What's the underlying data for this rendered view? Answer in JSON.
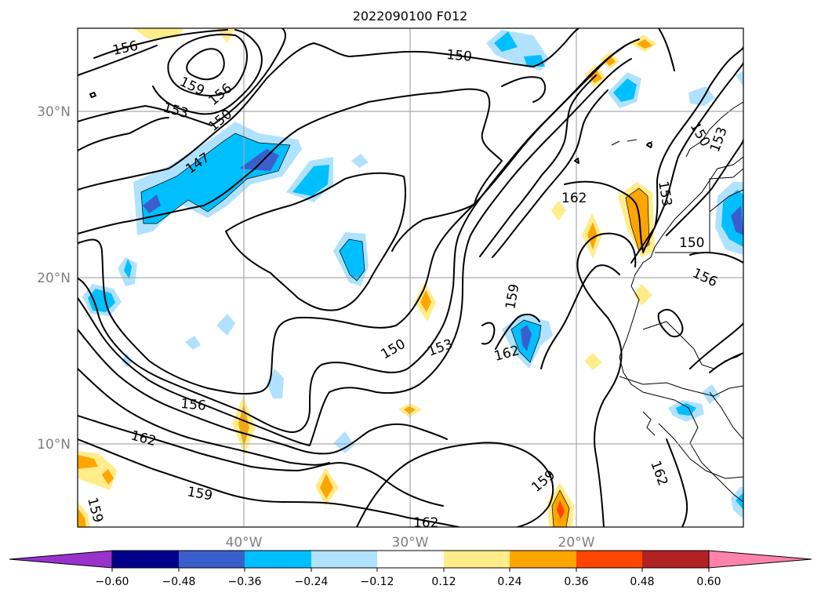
{
  "title": "2022090100 F012",
  "map": {
    "lat_labels": [
      "30°N",
      "20°N",
      "10°N"
    ],
    "lon_labels": [
      "40°W",
      "30°W",
      "20°W"
    ],
    "contour_labels": [
      "156",
      "159",
      "156",
      "153",
      "150",
      "147",
      "150",
      "150",
      "153",
      "162",
      "159",
      "162",
      "150",
      "153",
      "153",
      "150",
      "156",
      "156",
      "162",
      "159",
      "159",
      "162",
      "162",
      "159"
    ]
  },
  "colorbar": {
    "ticks": [
      "−0.60",
      "−0.48",
      "−0.36",
      "−0.24",
      "−0.12",
      "0.12",
      "0.24",
      "0.36",
      "0.48",
      "0.60"
    ],
    "colors": [
      "#9932cc",
      "#00008b",
      "#3a5fcd",
      "#00bfff",
      "#b0e2ff",
      "#ffffff",
      "#ffec8b",
      "#ffa500",
      "#ff4500",
      "#b22222",
      "#ff82ab"
    ]
  }
}
